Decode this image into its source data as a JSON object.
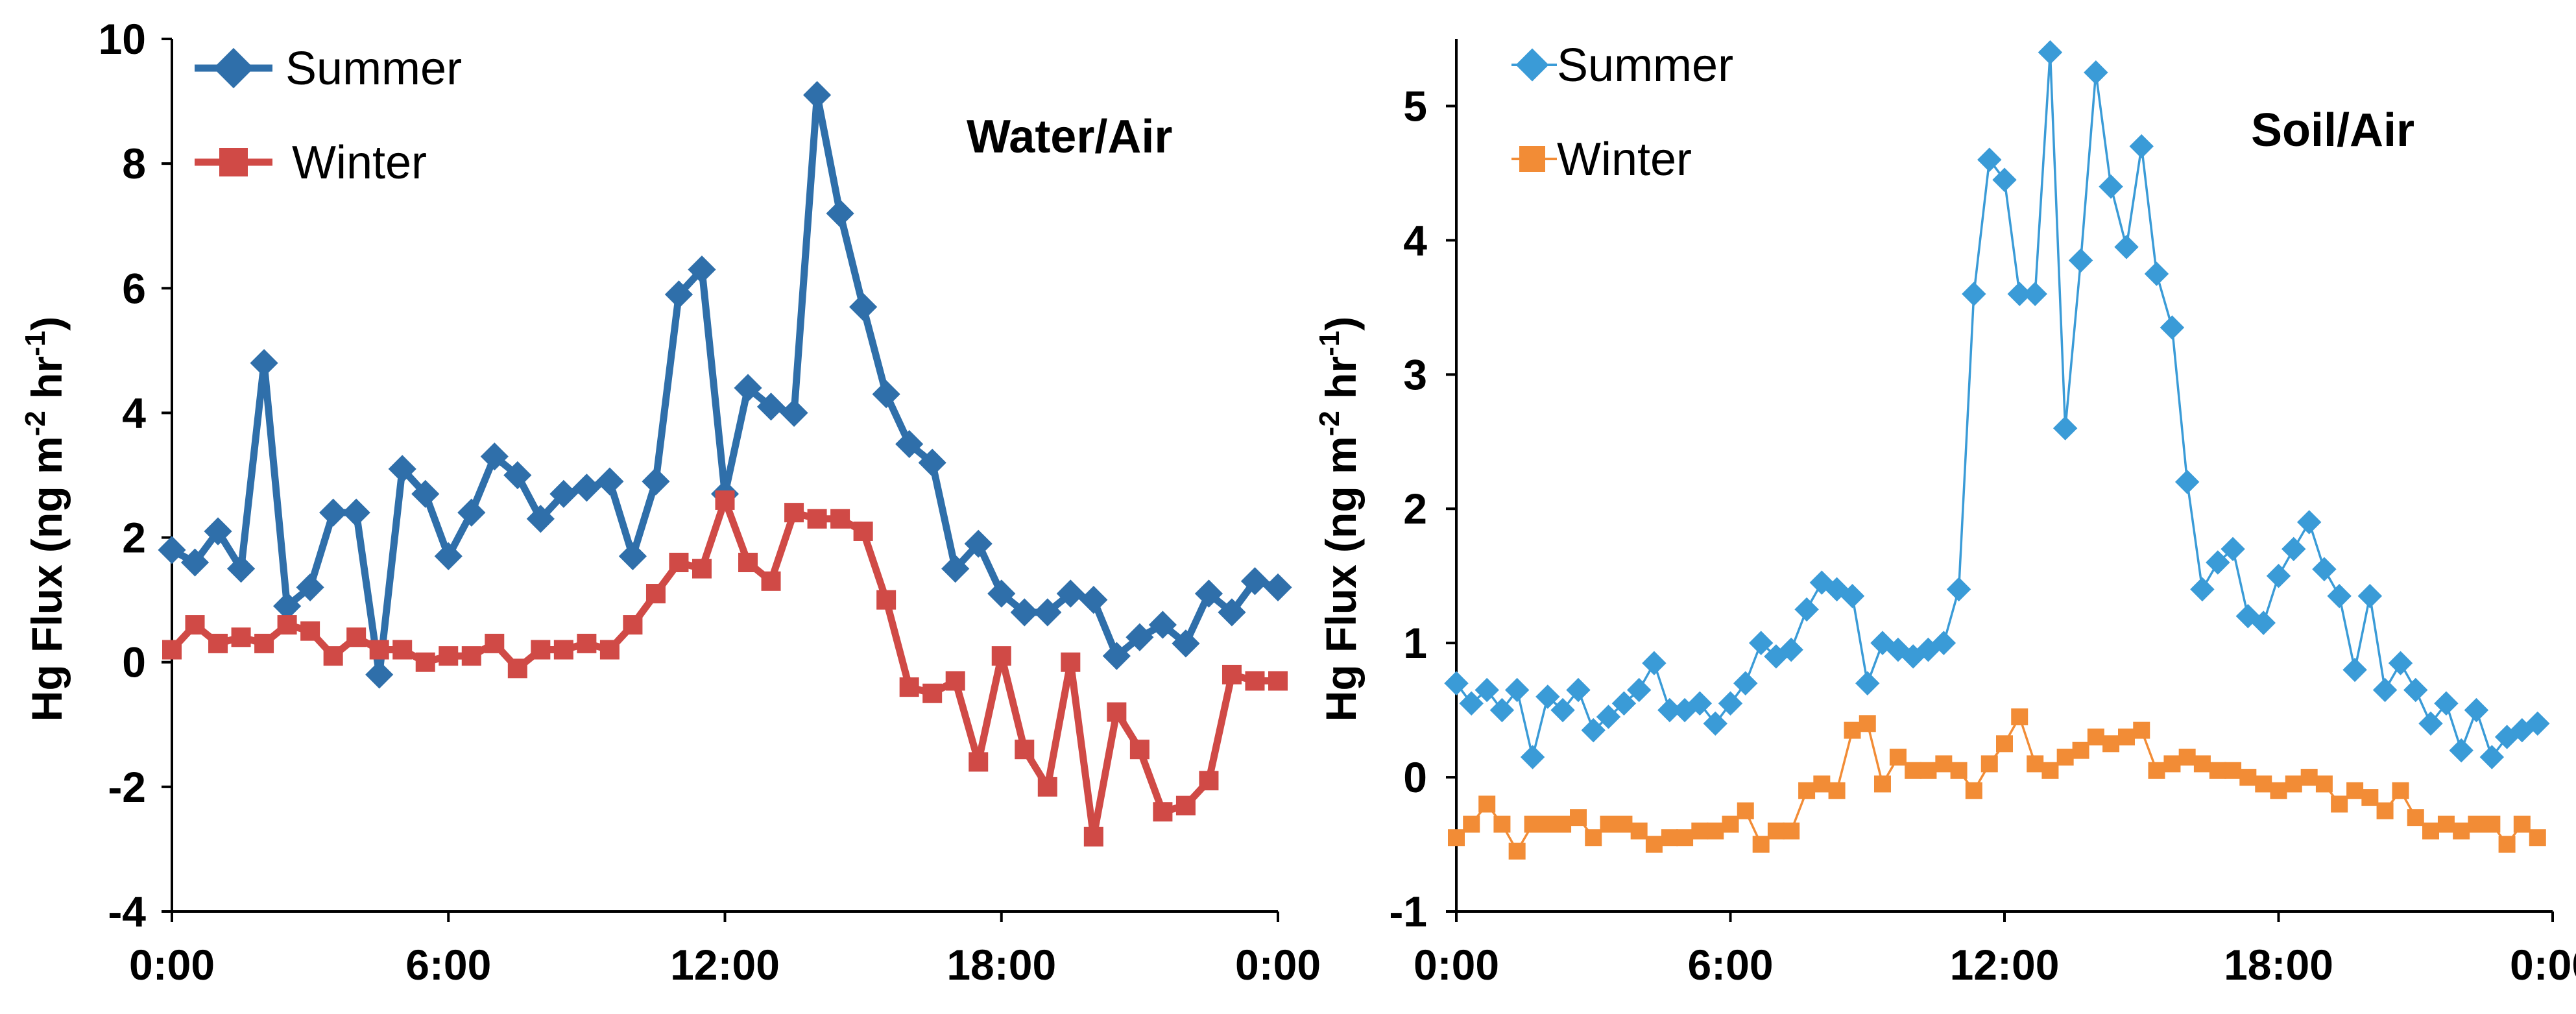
{
  "chart_data": [
    {
      "type": "line",
      "title": "Water/Air",
      "xlabel": "",
      "ylabel": "Hg Flux (ng m-2 hr-1)",
      "ylabel_parts": {
        "main": "Hg Flux (ng m",
        "sup1": "-2",
        "mid": " hr",
        "sup2": "-1",
        "end": ")"
      },
      "xlim": [
        0,
        24
      ],
      "ylim": [
        -4,
        10
      ],
      "yticks": [
        -4,
        -2,
        0,
        2,
        4,
        6,
        8,
        10
      ],
      "xticks": [
        0,
        6,
        12,
        18,
        24
      ],
      "xtick_labels": [
        "0:00",
        "6:00",
        "12:00",
        "18:00",
        "0:00"
      ],
      "ytick_labels": [
        "-4",
        "-2",
        "0",
        "2",
        "4",
        "6",
        "8",
        "10"
      ],
      "legend_position": "top-left",
      "series": [
        {
          "name": "Summer",
          "color": "#2f6faa",
          "marker": "diamond",
          "x": [
            0.0,
            0.5,
            1.0,
            1.5,
            2.0,
            2.5,
            3.0,
            3.5,
            4.0,
            4.5,
            5.0,
            5.5,
            6.0,
            6.5,
            7.0,
            7.5,
            8.0,
            8.5,
            9.0,
            9.5,
            10.0,
            10.5,
            11.0,
            11.5,
            12.0,
            12.5,
            13.0,
            13.5,
            14.0,
            14.5,
            15.0,
            15.5,
            16.0,
            16.5,
            17.0,
            17.5,
            18.0,
            18.5,
            19.0,
            19.5,
            20.0,
            20.5,
            21.0,
            21.5,
            22.0,
            22.5,
            23.0,
            23.5,
            24.0
          ],
          "values": [
            1.8,
            1.6,
            2.1,
            1.5,
            4.8,
            0.9,
            1.2,
            2.4,
            2.4,
            -0.2,
            3.1,
            2.7,
            1.7,
            2.4,
            3.3,
            3.0,
            2.3,
            2.7,
            2.8,
            2.9,
            1.7,
            2.9,
            5.9,
            6.3,
            2.7,
            4.4,
            4.1,
            4.0,
            9.1,
            7.2,
            5.7,
            4.3,
            3.5,
            3.2,
            1.5,
            1.9,
            1.1,
            0.8,
            0.8,
            1.1,
            1.0,
            0.1,
            0.4,
            0.6,
            0.3,
            1.1,
            0.8,
            1.3,
            1.2
          ]
        },
        {
          "name": "Winter",
          "color": "#d04a46",
          "marker": "square",
          "x": [
            0.0,
            0.5,
            1.0,
            1.5,
            2.0,
            2.5,
            3.0,
            3.5,
            4.0,
            4.5,
            5.0,
            5.5,
            6.0,
            6.5,
            7.0,
            7.5,
            8.0,
            8.5,
            9.0,
            9.5,
            10.0,
            10.5,
            11.0,
            11.5,
            12.0,
            12.5,
            13.0,
            13.5,
            14.0,
            14.5,
            15.0,
            15.5,
            16.0,
            16.5,
            17.0,
            17.5,
            18.0,
            18.5,
            19.0,
            19.5,
            20.0,
            20.5,
            21.0,
            21.5,
            22.0,
            22.5,
            23.0,
            23.5,
            24.0
          ],
          "values": [
            0.2,
            0.6,
            0.3,
            0.4,
            0.3,
            0.6,
            0.5,
            0.1,
            0.4,
            0.2,
            0.2,
            0.0,
            0.1,
            0.1,
            0.3,
            -0.1,
            0.2,
            0.2,
            0.3,
            0.2,
            0.6,
            1.1,
            1.6,
            1.5,
            2.6,
            1.6,
            1.3,
            2.4,
            2.3,
            2.3,
            2.1,
            1.0,
            -0.4,
            -0.5,
            -0.3,
            -1.6,
            0.1,
            -1.4,
            -2.0,
            0.0,
            -2.8,
            -0.8,
            -1.4,
            -2.4,
            -2.3,
            -1.9,
            -0.2,
            -0.3,
            -0.3
          ]
        }
      ]
    },
    {
      "type": "line",
      "title": "Soil/Air",
      "xlabel": "",
      "ylabel": "Hg Flux (ng m-2 hr-1)",
      "ylabel_parts": {
        "main": "Hg Flux (ng m",
        "sup1": "-2",
        "mid": " hr",
        "sup2": "-1",
        "end": ")"
      },
      "xlim": [
        0,
        24
      ],
      "ylim": [
        -1,
        5.5
      ],
      "yticks": [
        -1,
        0,
        1,
        2,
        3,
        4,
        5
      ],
      "xticks": [
        0,
        6,
        12,
        18,
        24
      ],
      "xtick_labels": [
        "0:00",
        "6:00",
        "12:00",
        "18:00",
        "0:00"
      ],
      "ytick_labels": [
        "-1",
        "0",
        "1",
        "2",
        "3",
        "4",
        "5"
      ],
      "legend_position": "top-left",
      "series": [
        {
          "name": "Summer",
          "color": "#3a9bd7",
          "marker": "diamond",
          "x": [
            0.0,
            0.33,
            0.67,
            1.0,
            1.33,
            1.67,
            2.0,
            2.33,
            2.67,
            3.0,
            3.33,
            3.67,
            4.0,
            4.33,
            4.67,
            5.0,
            5.33,
            5.67,
            6.0,
            6.33,
            6.67,
            7.0,
            7.33,
            7.67,
            8.0,
            8.33,
            8.67,
            9.0,
            9.33,
            9.67,
            10.0,
            10.33,
            10.67,
            11.0,
            11.33,
            11.67,
            12.0,
            12.33,
            12.67,
            13.0,
            13.33,
            13.67,
            14.0,
            14.33,
            14.67,
            15.0,
            15.33,
            15.67,
            16.0,
            16.33,
            16.67,
            17.0,
            17.33,
            17.67,
            18.0,
            18.33,
            18.67,
            19.0,
            19.33,
            19.67,
            20.0,
            20.33,
            20.67,
            21.0,
            21.33,
            21.67,
            22.0,
            22.33,
            22.67,
            23.0,
            23.33,
            23.67
          ],
          "values": [
            0.7,
            0.55,
            0.65,
            0.5,
            0.65,
            0.15,
            0.6,
            0.5,
            0.65,
            0.35,
            0.45,
            0.55,
            0.65,
            0.85,
            0.5,
            0.5,
            0.55,
            0.4,
            0.55,
            0.7,
            1.0,
            0.9,
            0.95,
            1.25,
            1.45,
            1.4,
            1.35,
            0.7,
            1.0,
            0.95,
            0.9,
            0.95,
            1.0,
            1.4,
            3.6,
            4.6,
            4.45,
            3.6,
            3.6,
            5.4,
            2.6,
            3.85,
            5.25,
            4.4,
            3.95,
            4.7,
            3.75,
            3.35,
            2.2,
            1.4,
            1.6,
            1.7,
            1.2,
            1.15,
            1.5,
            1.7,
            1.9,
            1.55,
            1.35,
            0.8,
            1.35,
            0.65,
            0.85,
            0.65,
            0.4,
            0.55,
            0.2,
            0.5,
            0.15,
            0.3,
            0.35,
            0.4
          ]
        },
        {
          "name": "Winter",
          "color": "#f28c36",
          "marker": "square",
          "x": [
            0.0,
            0.33,
            0.67,
            1.0,
            1.33,
            1.67,
            2.0,
            2.33,
            2.67,
            3.0,
            3.33,
            3.67,
            4.0,
            4.33,
            4.67,
            5.0,
            5.33,
            5.67,
            6.0,
            6.33,
            6.67,
            7.0,
            7.33,
            7.67,
            8.0,
            8.33,
            8.67,
            9.0,
            9.33,
            9.67,
            10.0,
            10.33,
            10.67,
            11.0,
            11.33,
            11.67,
            12.0,
            12.33,
            12.67,
            13.0,
            13.33,
            13.67,
            14.0,
            14.33,
            14.67,
            15.0,
            15.33,
            15.67,
            16.0,
            16.33,
            16.67,
            17.0,
            17.33,
            17.67,
            18.0,
            18.33,
            18.67,
            19.0,
            19.33,
            19.67,
            20.0,
            20.33,
            20.67,
            21.0,
            21.33,
            21.67,
            22.0,
            22.33,
            22.67,
            23.0,
            23.33,
            23.67
          ],
          "values": [
            -0.45,
            -0.35,
            -0.2,
            -0.35,
            -0.55,
            -0.35,
            -0.35,
            -0.35,
            -0.3,
            -0.45,
            -0.35,
            -0.35,
            -0.4,
            -0.5,
            -0.45,
            -0.45,
            -0.4,
            -0.4,
            -0.35,
            -0.25,
            -0.5,
            -0.4,
            -0.4,
            -0.1,
            -0.05,
            -0.1,
            0.35,
            0.4,
            -0.05,
            0.15,
            0.05,
            0.05,
            0.1,
            0.05,
            -0.1,
            0.1,
            0.25,
            0.45,
            0.1,
            0.05,
            0.15,
            0.2,
            0.3,
            0.25,
            0.3,
            0.35,
            0.05,
            0.1,
            0.15,
            0.1,
            0.05,
            0.05,
            0.0,
            -0.05,
            -0.1,
            -0.05,
            0.0,
            -0.05,
            -0.2,
            -0.1,
            -0.15,
            -0.25,
            -0.1,
            -0.3,
            -0.4,
            -0.35,
            -0.4,
            -0.35,
            -0.35,
            -0.5,
            -0.35,
            -0.45
          ]
        }
      ]
    }
  ]
}
